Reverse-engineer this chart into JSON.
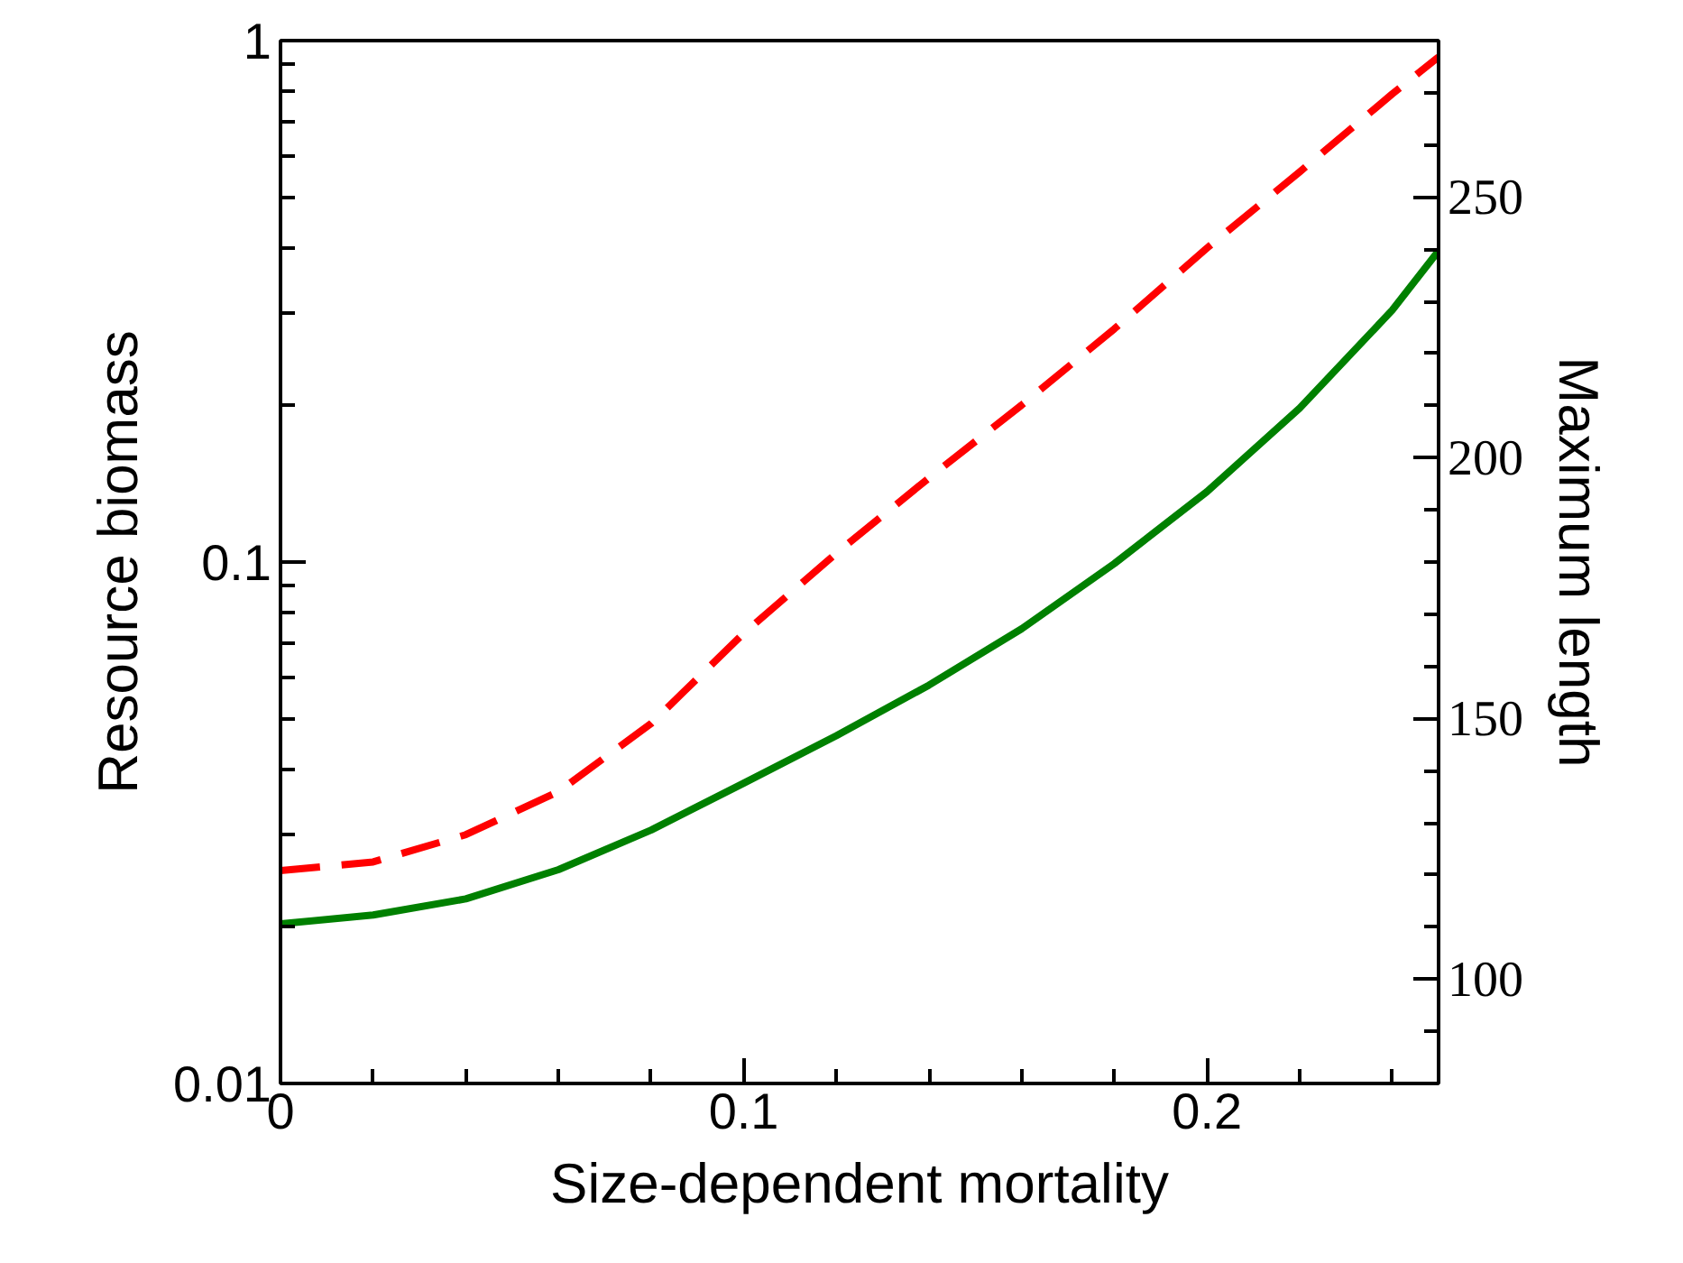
{
  "chart_data": {
    "type": "line",
    "xlabel": "Size-dependent mortality",
    "ylabel": "Resource biomass",
    "y2label": "Maximum length",
    "x": [
      0,
      0.02,
      0.04,
      0.06,
      0.08,
      0.1,
      0.12,
      0.14,
      0.16,
      0.18,
      0.2,
      0.22,
      0.24,
      0.25
    ],
    "series": [
      {
        "color": "#ff0000",
        "line_style": "dashed",
        "values": [
          0.0256,
          0.0266,
          0.03,
          0.0363,
          0.049,
          0.073,
          0.104,
          0.145,
          0.2,
          0.28,
          0.4,
          0.56,
          0.79,
          0.93
        ]
      },
      {
        "color": "#008000",
        "line_style": "solid",
        "axis": "y2",
        "values": [
          110.6,
          112.3,
          115.4,
          121,
          128.6,
          137.6,
          146.7,
          156.4,
          167.2,
          179.7,
          193.5,
          209.5,
          228.3,
          239.7
        ]
      }
    ],
    "log": "y",
    "grid": false,
    "xlim": [
      0,
      0.25
    ],
    "ylim": [
      0.01,
      1
    ],
    "y2lim": [
      80,
      280
    ],
    "xticks": [
      0,
      {
        "value": 0.02,
        "label": null
      },
      {
        "value": 0.04,
        "label": null
      },
      {
        "value": 0.06,
        "label": null
      },
      {
        "value": 0.08,
        "label": null
      },
      0.1,
      {
        "value": 0.12,
        "label": null
      },
      {
        "value": 0.14,
        "label": null
      },
      {
        "value": 0.16,
        "label": null
      },
      {
        "value": 0.18,
        "label": null
      },
      0.2,
      {
        "value": 0.22,
        "label": null
      },
      {
        "value": 0.24,
        "label": null
      }
    ],
    "yticks": [
      0.01,
      {
        "value": 0.02,
        "label": null
      },
      {
        "value": 0.03,
        "label": null
      },
      {
        "value": 0.04,
        "label": null
      },
      {
        "value": 0.05,
        "label": null
      },
      {
        "value": 0.06,
        "label": null
      },
      {
        "value": 0.07,
        "label": null
      },
      {
        "value": 0.08,
        "label": null
      },
      {
        "value": 0.09,
        "label": null
      },
      0.1,
      {
        "value": 0.2,
        "label": null
      },
      {
        "value": 0.3,
        "label": null
      },
      {
        "value": 0.4,
        "label": null
      },
      {
        "value": 0.5,
        "label": null
      },
      {
        "value": 0.6,
        "label": null
      },
      {
        "value": 0.7,
        "label": null
      },
      {
        "value": 0.8,
        "label": null
      },
      {
        "value": 0.9,
        "label": null
      },
      1
    ],
    "y2ticks": [
      {
        "value": 80,
        "label": null
      },
      {
        "value": 90,
        "label": null
      },
      100,
      {
        "value": 110,
        "label": null
      },
      {
        "value": 120,
        "label": null
      },
      {
        "value": 130,
        "label": null
      },
      {
        "value": 140,
        "label": null
      },
      150,
      {
        "value": 160,
        "label": null
      },
      {
        "value": 170,
        "label": null
      },
      {
        "value": 180,
        "label": null
      },
      {
        "value": 190,
        "label": null
      },
      200,
      {
        "value": 210,
        "label": null
      },
      {
        "value": 220,
        "label": null
      },
      {
        "value": 230,
        "label": null
      },
      {
        "value": 240,
        "label": null
      },
      250,
      {
        "value": 260,
        "label": null
      },
      {
        "value": 270,
        "label": null
      },
      {
        "value": 280,
        "label": null
      }
    ]
  }
}
